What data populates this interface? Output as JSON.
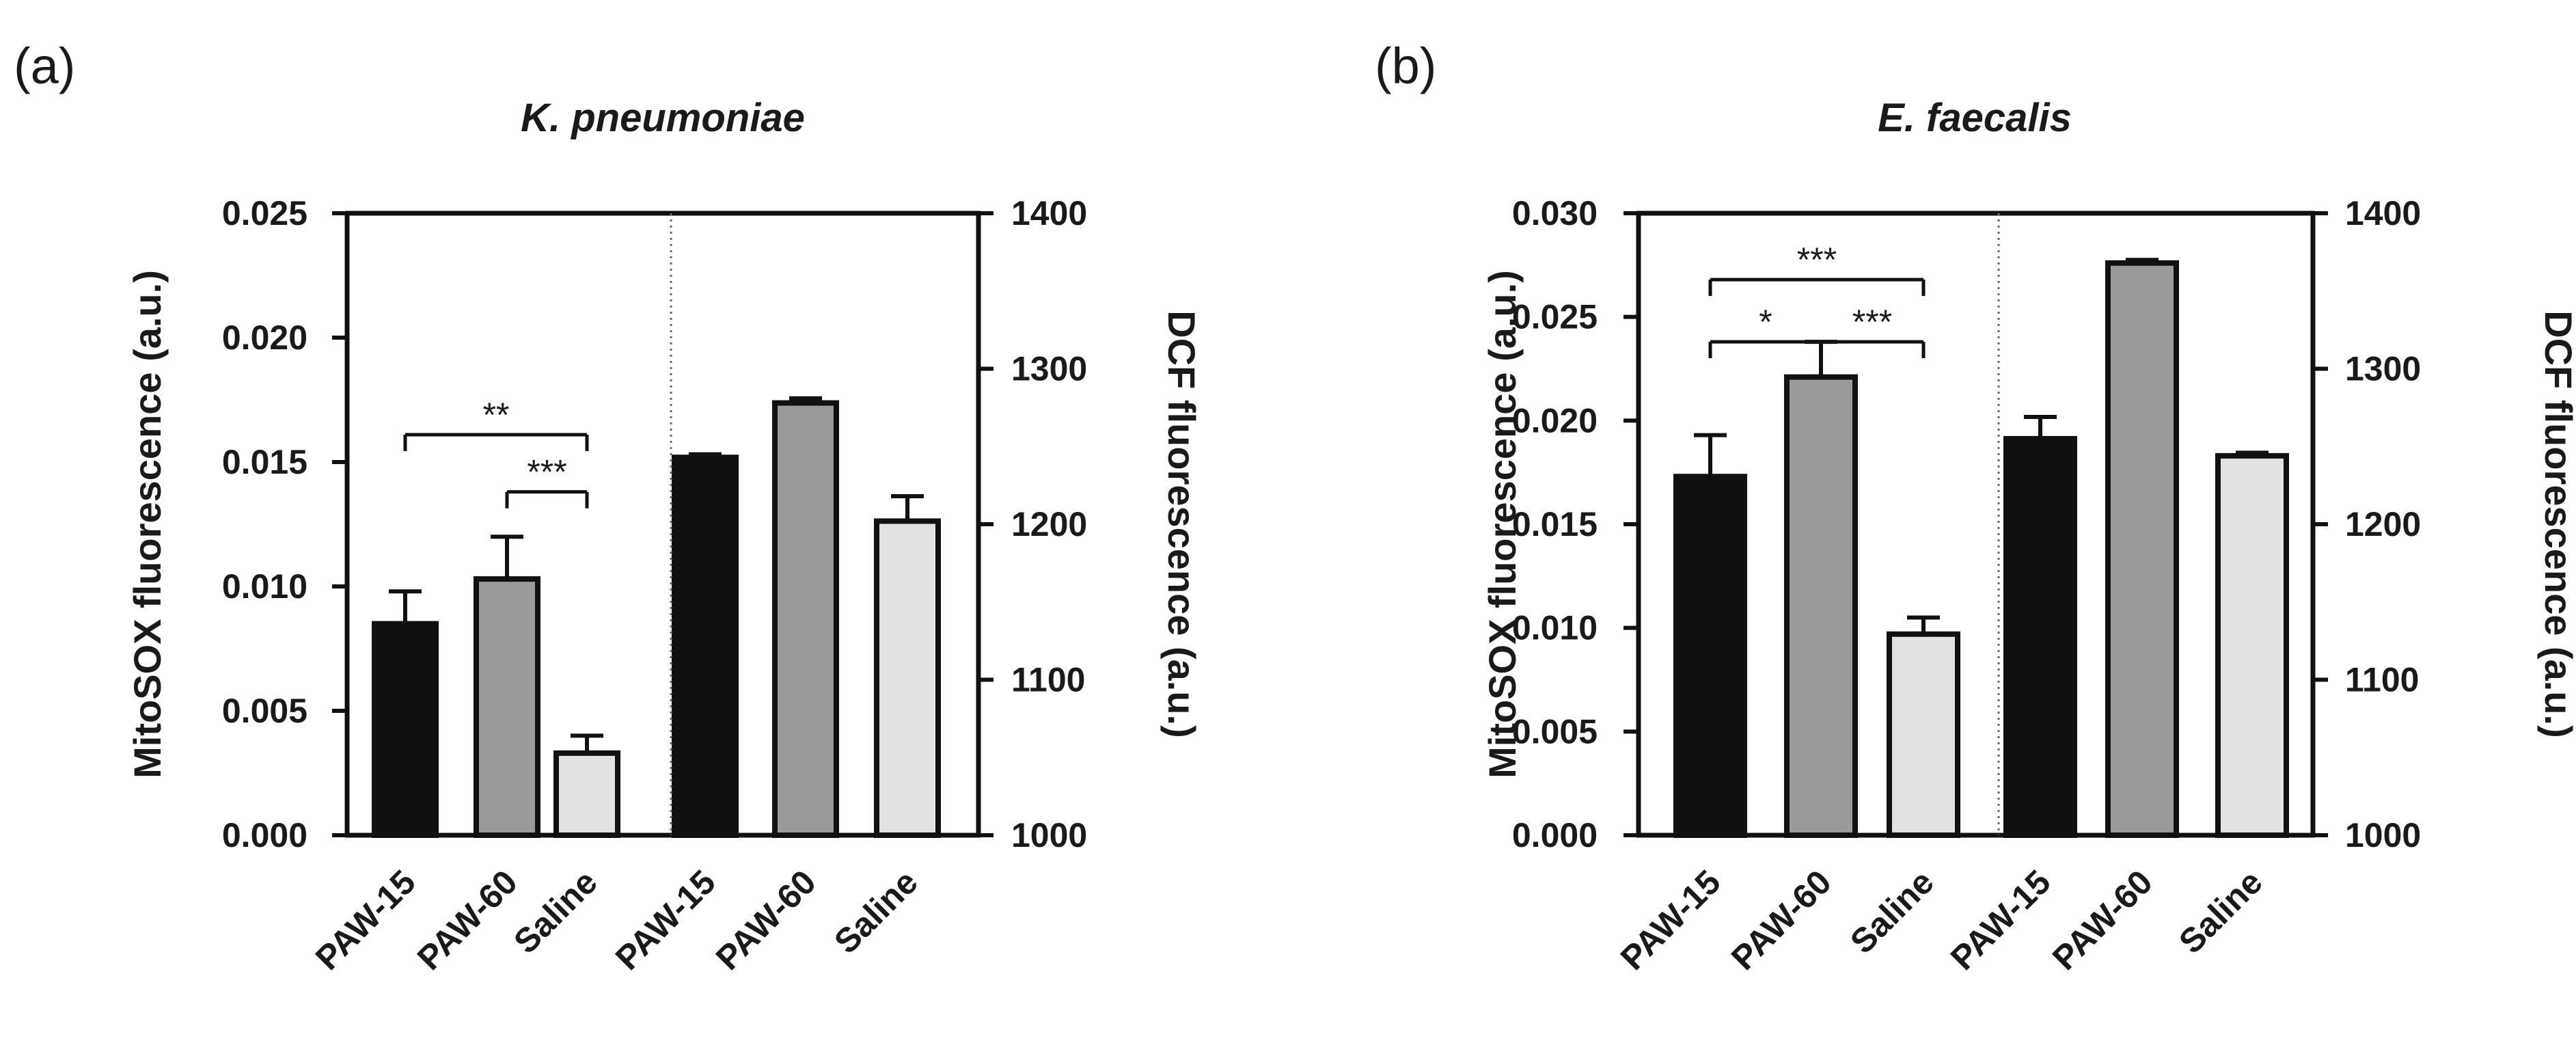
{
  "chart_data": [
    {
      "type": "bar",
      "panel_label": "(a)",
      "title": "K. pneumoniae",
      "left_axis": {
        "label": "MitoSOX fluorescence (a.u.)",
        "ylim": [
          0,
          0.025
        ],
        "ticks": [
          "0.000",
          "0.005",
          "0.010",
          "0.015",
          "0.020",
          "0.025"
        ]
      },
      "right_axis": {
        "label": "DCF fluorescence (a.u.)",
        "ylim": [
          1000,
          1400
        ],
        "ticks": [
          "1000",
          "1100",
          "1200",
          "1300",
          "1400"
        ]
      },
      "groups": [
        {
          "axis": "left",
          "categories": [
            "PAW-15",
            "PAW-60",
            "Saline"
          ],
          "values": [
            0.0085,
            0.0103,
            0.0033
          ],
          "errors": [
            0.0013,
            0.0017,
            0.0007
          ]
        },
        {
          "axis": "right",
          "categories": [
            "PAW-15",
            "PAW-60",
            "Saline"
          ],
          "values": [
            1243,
            1278,
            1202
          ],
          "errors": [
            2,
            3,
            16
          ]
        }
      ],
      "significance": [
        {
          "from": 0,
          "to": 2,
          "label": "**"
        },
        {
          "from": 1,
          "to": 2,
          "label": "***"
        }
      ]
    },
    {
      "type": "bar",
      "panel_label": "(b)",
      "title": "E. faecalis",
      "left_axis": {
        "label": "MitoSOX fluorescence (a.u.)",
        "ylim": [
          0,
          0.03
        ],
        "ticks": [
          "0.000",
          "0.005",
          "0.010",
          "0.015",
          "0.020",
          "0.025",
          "0.030"
        ]
      },
      "right_axis": {
        "label": "DCF fluorescence (a.u.)",
        "ylim": [
          1000,
          1400
        ],
        "ticks": [
          "1000",
          "1100",
          "1200",
          "1300",
          "1400"
        ]
      },
      "groups": [
        {
          "axis": "left",
          "categories": [
            "PAW-15",
            "PAW-60",
            "Saline"
          ],
          "values": [
            0.0173,
            0.0221,
            0.0097
          ],
          "errors": [
            0.002,
            0.0017,
            0.0008
          ]
        },
        {
          "axis": "right",
          "categories": [
            "PAW-15",
            "PAW-60",
            "Saline"
          ],
          "values": [
            1255,
            1368,
            1244
          ],
          "errors": [
            14,
            2,
            2
          ]
        }
      ],
      "significance": [
        {
          "from": 0,
          "to": 2,
          "label": "***"
        },
        {
          "from": 0,
          "to": 1,
          "label": "*"
        },
        {
          "from": 1,
          "to": 2,
          "label": "***"
        }
      ]
    }
  ],
  "colors": {
    "bar_fills": [
      "#111111",
      "#9a9a9a",
      "#e2e2e2"
    ],
    "stroke": "#111111",
    "divider": "#666666"
  }
}
